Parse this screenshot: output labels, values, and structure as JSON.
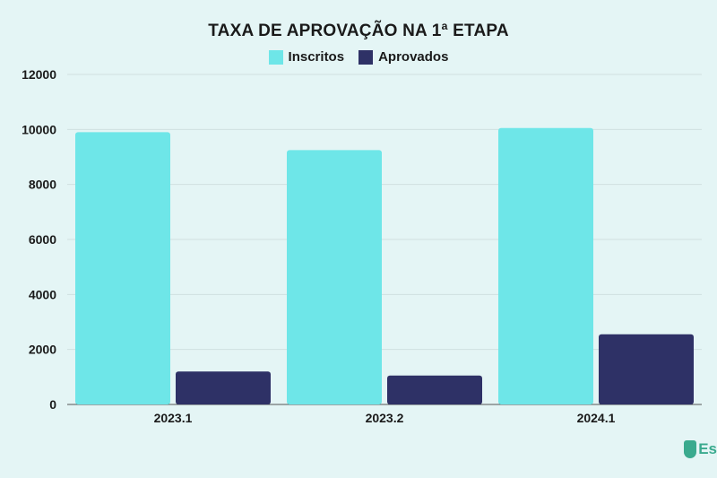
{
  "chart_data": {
    "type": "bar",
    "title": "TAXA DE APROVAÇÃO NA 1ª ETAPA",
    "categories": [
      "2023.1",
      "2023.2",
      "2024.1"
    ],
    "series": [
      {
        "name": "Inscritos",
        "color": "#6ee6e8",
        "values": [
          9900,
          9250,
          10050
        ]
      },
      {
        "name": "Aprovados",
        "color": "#2e3166",
        "values": [
          1200,
          1050,
          2550
        ]
      }
    ],
    "ylim": [
      0,
      12000
    ],
    "yticks": [
      0,
      2000,
      4000,
      6000,
      8000,
      10000,
      12000
    ],
    "grid": true,
    "legend_position": "top-center"
  },
  "brand": {
    "text": "Es",
    "icon": "brand-logo-icon",
    "color": "#3aaa8e"
  }
}
